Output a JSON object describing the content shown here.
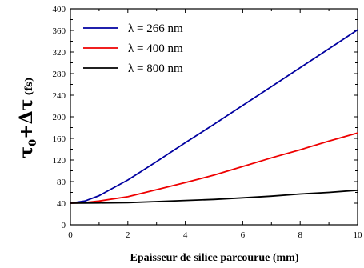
{
  "chart_data": {
    "type": "line",
    "xlabel": "Epaisseur de silice parcourue (mm)",
    "ylabel": {
      "tau": "τ",
      "sub": "0",
      "plus": "+",
      "delta_tau": "Δτ",
      "unit": "(fs)"
    },
    "xlim": [
      0,
      10
    ],
    "ylim": [
      0,
      400
    ],
    "x_ticks": [
      "0",
      "2",
      "4",
      "6",
      "8",
      "10"
    ],
    "y_ticks": [
      "0",
      "40",
      "80",
      "120",
      "160",
      "200",
      "240",
      "280",
      "320",
      "360",
      "400"
    ],
    "grid": false,
    "legend_position": "top-left",
    "series": [
      {
        "name": "λ = 266 nm",
        "color": "#0000a0",
        "x": [
          0,
          0.5,
          1,
          2,
          3,
          4,
          5,
          6,
          7,
          8,
          9,
          10
        ],
        "y": [
          40,
          44,
          54,
          83,
          117,
          152,
          186,
          221,
          256,
          291,
          326,
          361
        ]
      },
      {
        "name": "λ = 400 nm",
        "color": "#ee0000",
        "x": [
          0,
          0.5,
          1,
          2,
          3,
          4,
          5,
          6,
          7,
          8,
          9,
          10
        ],
        "y": [
          40,
          41,
          44,
          52,
          65,
          78,
          92,
          108,
          124,
          139,
          155,
          170
        ]
      },
      {
        "name": "λ = 800 nm",
        "color": "#000000",
        "x": [
          0,
          1,
          2,
          3,
          4,
          5,
          6,
          7,
          8,
          9,
          10
        ],
        "y": [
          40,
          40.5,
          41,
          43,
          45,
          47,
          50,
          53,
          57,
          60,
          64
        ]
      }
    ]
  }
}
